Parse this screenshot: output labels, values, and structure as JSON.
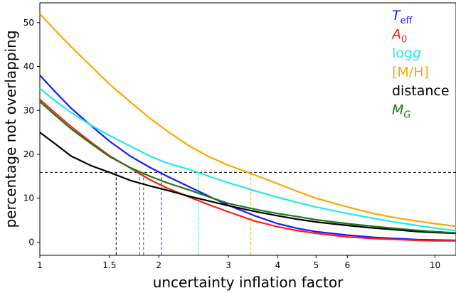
{
  "chart_data": {
    "type": "line",
    "xlabel": "uncertainty inflation factor",
    "ylabel": "percentage not overlapping",
    "xscale": "log",
    "xlim": [
      1,
      11.3
    ],
    "ylim": [
      -3,
      54.5
    ],
    "xticks": [
      1,
      1.5,
      2,
      3,
      4,
      5,
      6,
      10
    ],
    "xtick_labels": [
      "1",
      "1.5",
      "2",
      "3",
      "4",
      "5",
      "6",
      "10"
    ],
    "yticks": [
      0,
      10,
      20,
      30,
      40,
      50
    ],
    "ytick_labels": [
      "0",
      "10",
      "20",
      "30",
      "40",
      "50"
    ],
    "threshold": 15.9,
    "legend_position": "top-right",
    "series": [
      {
        "name": "Teff",
        "name_main": "T",
        "name_sub": "eff",
        "color": "#1a1aff",
        "crossing_x": 2.03,
        "x": [
          1,
          1.1,
          1.2,
          1.35,
          1.5,
          1.7,
          1.9,
          2.1,
          2.4,
          2.7,
          3,
          3.5,
          4,
          4.5,
          5,
          6,
          7,
          8,
          9,
          10,
          11.3
        ],
        "y": [
          38,
          34,
          30.5,
          26.5,
          23,
          19.5,
          17,
          15,
          12.5,
          10.3,
          8.4,
          6,
          4.2,
          3.1,
          2.4,
          1.6,
          1.1,
          0.8,
          0.6,
          0.5,
          0.4
        ]
      },
      {
        "name": "A0",
        "name_main": "A",
        "name_sub": "0",
        "color": "#ff1a1a",
        "crossing_x": 1.79,
        "x": [
          1,
          1.1,
          1.2,
          1.35,
          1.5,
          1.7,
          1.9,
          2.1,
          2.4,
          2.7,
          3,
          3.5,
          4,
          4.5,
          5,
          6,
          7,
          8,
          9,
          10,
          11.3
        ],
        "y": [
          32.5,
          29.2,
          26.3,
          22.7,
          19.7,
          16.8,
          14.2,
          12.3,
          10.2,
          8.4,
          6.9,
          4.8,
          3.5,
          2.6,
          2,
          1.2,
          0.8,
          0.6,
          0.4,
          0.3,
          0.3
        ]
      },
      {
        "name": "logg",
        "name_main": "log",
        "name_italic": "g",
        "color": "#22e8f0",
        "crossing_x": 2.52,
        "x": [
          1,
          1.1,
          1.2,
          1.35,
          1.5,
          1.7,
          1.9,
          2.1,
          2.4,
          2.7,
          3,
          3.5,
          4,
          4.5,
          5,
          6,
          7,
          8,
          9,
          10,
          11.3
        ],
        "y": [
          35,
          32,
          29.5,
          26.6,
          24.3,
          21.8,
          19.6,
          18,
          16.5,
          14.9,
          13.5,
          11.7,
          10.2,
          9,
          8,
          6.5,
          5.4,
          4.5,
          3.8,
          3.2,
          2.6
        ]
      },
      {
        "name": "[M/H]",
        "name_main": "[M/H]",
        "color": "#ffa500",
        "crossing_x": 3.42,
        "x": [
          1,
          1.1,
          1.2,
          1.35,
          1.5,
          1.7,
          1.9,
          2.1,
          2.4,
          2.7,
          3,
          3.5,
          4,
          4.5,
          5,
          6,
          7,
          8,
          9,
          10,
          11.3
        ],
        "y": [
          52,
          48,
          44.5,
          40,
          36,
          31.8,
          28.2,
          25.3,
          21.8,
          19.3,
          17.5,
          15.3,
          13.3,
          11.5,
          10,
          8,
          6.5,
          5.5,
          4.8,
          4.2,
          3.6
        ]
      },
      {
        "name": "distance",
        "name_main": "distance",
        "color": "#000000",
        "crossing_x": 1.56,
        "x": [
          1,
          1.1,
          1.2,
          1.35,
          1.5,
          1.7,
          1.9,
          2.1,
          2.4,
          2.7,
          3,
          3.5,
          4,
          4.5,
          5,
          6,
          7,
          8,
          9,
          10,
          11.3
        ],
        "y": [
          25,
          22.2,
          19.6,
          17.4,
          15.9,
          14,
          12.8,
          11.8,
          10.4,
          9.3,
          8.3,
          7,
          6,
          5.2,
          4.6,
          3.8,
          3.2,
          2.8,
          2.4,
          2.2,
          2
        ]
      },
      {
        "name": "MG",
        "name_main": "M",
        "name_sub": "G",
        "name_sub_italic": true,
        "name_italic_main": true,
        "color": "#1a7a1a",
        "crossing_x": 1.83,
        "x": [
          1,
          1.1,
          1.2,
          1.35,
          1.5,
          1.7,
          1.9,
          2.1,
          2.4,
          2.7,
          3,
          3.5,
          4,
          4.5,
          5,
          6,
          7,
          8,
          9,
          10,
          11.3
        ],
        "y": [
          32,
          28.7,
          25.8,
          22.4,
          19.5,
          16.9,
          15,
          13.5,
          11.8,
          10.2,
          8.8,
          7.5,
          6.5,
          5.8,
          5.1,
          4.2,
          3.6,
          3.1,
          2.7,
          2.4,
          2.1
        ]
      }
    ]
  }
}
